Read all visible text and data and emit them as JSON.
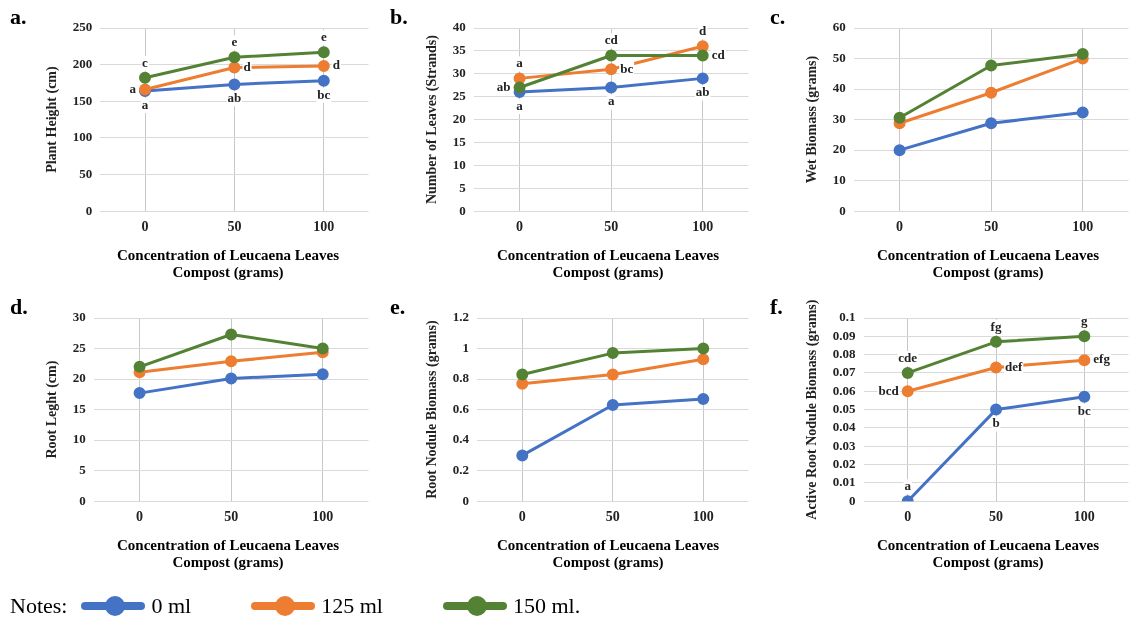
{
  "chart_data": [
    {
      "type": "line",
      "title": "a.",
      "ylabel": "Plant Height (cm)",
      "xlabel": "Concentration of Leucaena Leaves Compost (grams)",
      "categories": [
        "0",
        "50",
        "100"
      ],
      "ylim": [
        0,
        250
      ],
      "yticks": [
        0,
        50,
        100,
        150,
        200,
        250
      ],
      "grid": true,
      "marker": "circle",
      "legend": "bottom",
      "legend_title": "Notes:",
      "series": [
        {
          "name": "0 ml",
          "color": "#4472c4",
          "values": [
            164,
            173,
            178
          ],
          "value_labels": [
            "a",
            "ab",
            "bc"
          ]
        },
        {
          "name": "125 ml",
          "color": "#ed7d31",
          "values": [
            166,
            196,
            198
          ],
          "value_labels": [
            "a",
            "d",
            "d"
          ]
        },
        {
          "name": "150 ml.",
          "color": "#548235",
          "values": [
            182,
            210,
            217
          ],
          "value_labels": [
            "c",
            "e",
            "e"
          ]
        }
      ]
    },
    {
      "type": "line",
      "title": "b.",
      "ylabel": "Number of Leaves (Strands)",
      "xlabel": "Concentration of Leucaena Leaves Compost (grams)",
      "categories": [
        "0",
        "50",
        "100"
      ],
      "ylim": [
        0,
        40
      ],
      "yticks": [
        0,
        5,
        10,
        15,
        20,
        25,
        30,
        35,
        40
      ],
      "grid": true,
      "marker": "circle",
      "series": [
        {
          "color": "#4472c4",
          "values": [
            26,
            27,
            29
          ],
          "value_labels": [
            "a",
            "a",
            "ab"
          ]
        },
        {
          "color": "#ed7d31",
          "values": [
            29,
            31,
            36
          ],
          "value_labels": [
            "a",
            "bc",
            "d"
          ]
        },
        {
          "color": "#548235",
          "values": [
            27,
            34,
            34
          ],
          "value_labels": [
            "ab",
            "cd",
            "cd"
          ]
        }
      ]
    },
    {
      "type": "line",
      "title": "c.",
      "ylabel": "Wet Biomass (grams)",
      "xlabel": "Concentration of Leucaena Leaves Compost (grams)",
      "categories": [
        "0",
        "50",
        "100"
      ],
      "ylim": [
        0,
        60
      ],
      "yticks": [
        0,
        10,
        20,
        30,
        40,
        50,
        60
      ],
      "grid": true,
      "marker": "circle",
      "series": [
        {
          "color": "#4472c4",
          "values": [
            20,
            28.8,
            32.3
          ]
        },
        {
          "color": "#ed7d31",
          "values": [
            28.8,
            38.8,
            50
          ]
        },
        {
          "color": "#548235",
          "values": [
            30.6,
            47.7,
            51.5
          ]
        }
      ]
    },
    {
      "type": "line",
      "title": "d.",
      "ylabel": "Root Leght (cm)",
      "xlabel": "Concentration of Leucaena Leaves Compost (grams)",
      "categories": [
        "0",
        "50",
        "100"
      ],
      "ylim": [
        0,
        30
      ],
      "yticks": [
        0,
        5,
        10,
        15,
        20,
        25,
        30
      ],
      "grid": true,
      "marker": "circle",
      "series": [
        {
          "color": "#4472c4",
          "values": [
            17.7,
            20.1,
            20.8
          ]
        },
        {
          "color": "#ed7d31",
          "values": [
            21.1,
            22.9,
            24.4
          ]
        },
        {
          "color": "#548235",
          "values": [
            22,
            27.3,
            25
          ]
        }
      ]
    },
    {
      "type": "line",
      "title": "e.",
      "ylabel": "Root Nodule Biomass (grams)",
      "xlabel": "Concentration of Leucaena Leaves Compost (grams)",
      "categories": [
        "0",
        "50",
        "100"
      ],
      "ylim": [
        0,
        1.2
      ],
      "yticks": [
        0,
        0.2,
        0.4,
        0.6,
        0.8,
        1,
        1.2
      ],
      "grid": true,
      "marker": "circle",
      "series": [
        {
          "color": "#4472c4",
          "values": [
            0.3,
            0.63,
            0.67
          ]
        },
        {
          "color": "#ed7d31",
          "values": [
            0.77,
            0.83,
            0.93
          ]
        },
        {
          "color": "#548235",
          "values": [
            0.83,
            0.97,
            1
          ]
        }
      ]
    },
    {
      "type": "line",
      "title": "f.",
      "ylabel": "Active Root Nodule Biomass (grams)",
      "xlabel": "Concentration of Leucaena Leaves Compost (grams)",
      "categories": [
        "0",
        "50",
        "100"
      ],
      "ylim": [
        0,
        0.1
      ],
      "yticks": [
        0,
        0.01,
        0.02,
        0.03,
        0.04,
        0.05,
        0.06,
        0.07,
        0.08,
        0.09,
        0.1
      ],
      "grid": true,
      "marker": "circle",
      "series": [
        {
          "color": "#4472c4",
          "values": [
            0,
            0.05,
            0.057
          ],
          "value_labels": [
            "a",
            "b",
            "bc"
          ]
        },
        {
          "color": "#ed7d31",
          "values": [
            0.06,
            0.073,
            0.077
          ],
          "value_labels": [
            "bcd",
            "def",
            "efg"
          ]
        },
        {
          "color": "#548235",
          "values": [
            0.07,
            0.087,
            0.09
          ],
          "value_labels": [
            "cde",
            "fg",
            "g"
          ]
        }
      ]
    }
  ]
}
